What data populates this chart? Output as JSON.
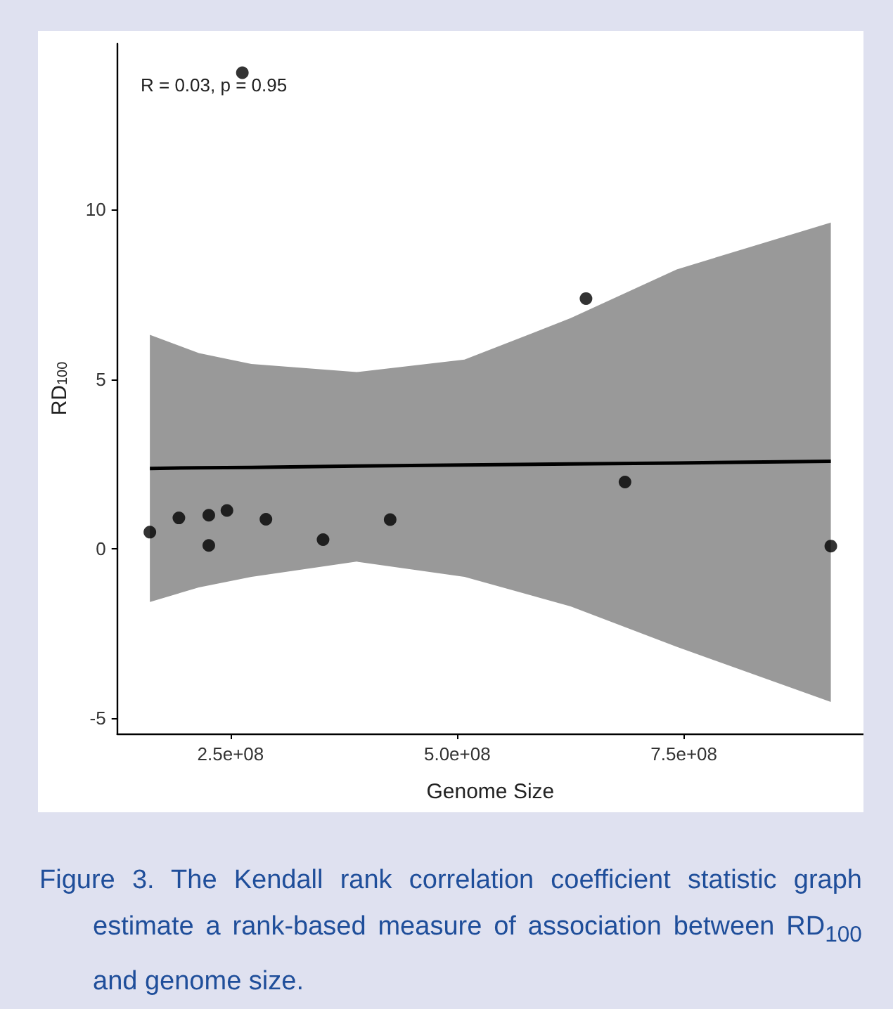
{
  "chart_data": {
    "type": "scatter",
    "xlabel": "Genome Size",
    "ylabel": "RD$_{100}$",
    "annotations": [
      "R = 0.03, p = 0.95",
      "Figure 3. The Kendall rank correlation coefficient statistic graph estimate a rank-based measure of association between RD$_{100}$ and genome size."
    ],
    "xlim": [
      125000000,
      948000000
    ],
    "xticks": [
      {
        "value": 250000000,
        "label": "2.5e+08"
      },
      {
        "value": 500000000,
        "label": "5.0e+08"
      },
      {
        "value": 750000000,
        "label": "7.5e+08"
      }
    ],
    "ylim": [
      -5.45,
      14.9
    ],
    "yticks": [
      -5,
      0,
      5,
      10
    ],
    "grid": false,
    "series": [
      {
        "marker": "circle",
        "color": "#000000",
        "x": [
          161000000,
          193000000,
          226000000,
          226000000,
          246000000,
          263000000,
          289000000,
          352000000,
          426000000,
          642000000,
          685000000,
          912000000
        ],
        "values": [
          0.49,
          0.91,
          0.99,
          0.1,
          1.13,
          14.04,
          0.87,
          0.27,
          0.86,
          7.38,
          1.97,
          0.08
        ]
      },
      {
        "type": "line",
        "color": "#000000",
        "x": [
          161000000,
          215000000,
          273000000,
          389000000,
          508000000,
          625000000,
          742000000,
          912000000
        ],
        "values": [
          2.37,
          2.39,
          2.4,
          2.44,
          2.47,
          2.5,
          2.53,
          2.58
        ],
        "lower": [
          -1.57,
          -1.14,
          -0.83,
          -0.38,
          -0.83,
          -1.7,
          -2.89,
          -4.52
        ],
        "upper": [
          6.31,
          5.77,
          5.45,
          5.21,
          5.58,
          6.8,
          8.24,
          9.62
        ]
      }
    ]
  }
}
